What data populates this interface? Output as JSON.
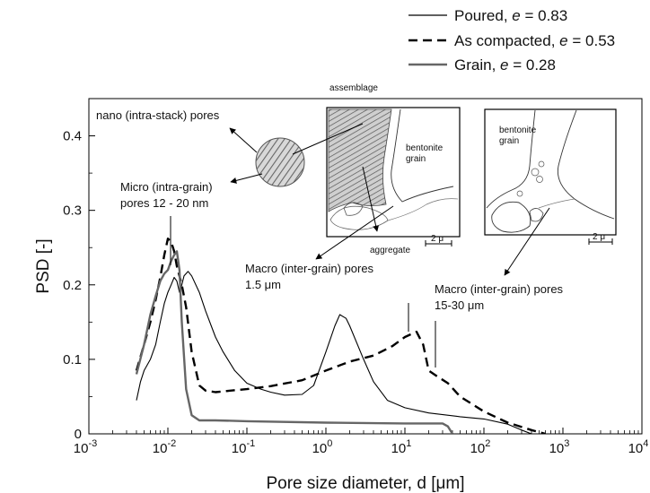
{
  "chart_data": {
    "type": "line",
    "xscale": "log",
    "xlim": [
      0.001,
      10000
    ],
    "ylim": [
      0,
      0.45
    ],
    "xlabel": "Pore size diameter, d [μm]",
    "ylabel": "PSD [-]",
    "x_ticks": [
      {
        "base": "10",
        "exp": "-3",
        "value": 0.001
      },
      {
        "base": "10",
        "exp": "-2",
        "value": 0.01
      },
      {
        "base": "10",
        "exp": "-1",
        "value": 0.1
      },
      {
        "base": "10",
        "exp": "0",
        "value": 1
      },
      {
        "base": "10",
        "exp": "1",
        "value": 10
      },
      {
        "base": "10",
        "exp": "2",
        "value": 100
      },
      {
        "base": "10",
        "exp": "3",
        "value": 1000
      },
      {
        "base": "10",
        "exp": "4",
        "value": 10000
      }
    ],
    "y_ticks": [
      "0",
      "0.1",
      "0.2",
      "0.3",
      "0.4"
    ],
    "legend_position": "top-right",
    "series": [
      {
        "name": "Poured",
        "legend_prefix": "Poured, ",
        "legend_var": "e",
        "legend_value": " = 0.83",
        "style": "solid-thin",
        "color": "#000000",
        "points": [
          [
            0.004,
            0.045
          ],
          [
            0.0045,
            0.07
          ],
          [
            0.005,
            0.085
          ],
          [
            0.006,
            0.1
          ],
          [
            0.007,
            0.12
          ],
          [
            0.008,
            0.15
          ],
          [
            0.009,
            0.175
          ],
          [
            0.01,
            0.19
          ],
          [
            0.011,
            0.2
          ],
          [
            0.012,
            0.21
          ],
          [
            0.013,
            0.205
          ],
          [
            0.014,
            0.19
          ],
          [
            0.015,
            0.2
          ],
          [
            0.016,
            0.212
          ],
          [
            0.018,
            0.218
          ],
          [
            0.02,
            0.212
          ],
          [
            0.025,
            0.19
          ],
          [
            0.03,
            0.165
          ],
          [
            0.04,
            0.13
          ],
          [
            0.05,
            0.11
          ],
          [
            0.07,
            0.085
          ],
          [
            0.1,
            0.068
          ],
          [
            0.15,
            0.06
          ],
          [
            0.2,
            0.056
          ],
          [
            0.3,
            0.052
          ],
          [
            0.5,
            0.053
          ],
          [
            0.7,
            0.065
          ],
          [
            1.0,
            0.11
          ],
          [
            1.3,
            0.145
          ],
          [
            1.5,
            0.16
          ],
          [
            1.8,
            0.155
          ],
          [
            2.0,
            0.145
          ],
          [
            3.0,
            0.1
          ],
          [
            4.0,
            0.07
          ],
          [
            6.0,
            0.045
          ],
          [
            10,
            0.035
          ],
          [
            20,
            0.028
          ],
          [
            50,
            0.023
          ],
          [
            100,
            0.02
          ],
          [
            200,
            0.013
          ],
          [
            300,
            0.005
          ],
          [
            400,
            0.0
          ]
        ]
      },
      {
        "name": "As compacted",
        "legend_prefix": "As compacted, ",
        "legend_var": "e",
        "legend_value": " = 0.53",
        "style": "dashed",
        "color": "#000000",
        "points": [
          [
            0.004,
            0.085
          ],
          [
            0.005,
            0.12
          ],
          [
            0.006,
            0.15
          ],
          [
            0.007,
            0.18
          ],
          [
            0.008,
            0.21
          ],
          [
            0.009,
            0.24
          ],
          [
            0.01,
            0.262
          ],
          [
            0.011,
            0.258
          ],
          [
            0.012,
            0.245
          ],
          [
            0.013,
            0.225
          ],
          [
            0.015,
            0.2
          ],
          [
            0.017,
            0.17
          ],
          [
            0.02,
            0.11
          ],
          [
            0.025,
            0.065
          ],
          [
            0.03,
            0.058
          ],
          [
            0.04,
            0.056
          ],
          [
            0.05,
            0.057
          ],
          [
            0.1,
            0.06
          ],
          [
            0.2,
            0.064
          ],
          [
            0.5,
            0.072
          ],
          [
            1.0,
            0.085
          ],
          [
            2.0,
            0.097
          ],
          [
            4.0,
            0.105
          ],
          [
            7.0,
            0.118
          ],
          [
            10,
            0.13
          ],
          [
            14,
            0.137
          ],
          [
            17,
            0.12
          ],
          [
            20,
            0.085
          ],
          [
            25,
            0.078
          ],
          [
            35,
            0.068
          ],
          [
            50,
            0.05
          ],
          [
            100,
            0.03
          ],
          [
            200,
            0.015
          ],
          [
            400,
            0.005
          ],
          [
            600,
            0.0
          ]
        ]
      },
      {
        "name": "Grain",
        "legend_prefix": "Grain, ",
        "legend_var": "e",
        "legend_value": " = 0.28",
        "style": "solid-thick",
        "color": "#666666",
        "points": [
          [
            0.004,
            0.08
          ],
          [
            0.005,
            0.12
          ],
          [
            0.006,
            0.16
          ],
          [
            0.007,
            0.185
          ],
          [
            0.008,
            0.205
          ],
          [
            0.009,
            0.215
          ],
          [
            0.01,
            0.22
          ],
          [
            0.011,
            0.232
          ],
          [
            0.012,
            0.24
          ],
          [
            0.013,
            0.245
          ],
          [
            0.014,
            0.22
          ],
          [
            0.015,
            0.15
          ],
          [
            0.017,
            0.06
          ],
          [
            0.02,
            0.025
          ],
          [
            0.025,
            0.018
          ],
          [
            0.04,
            0.018
          ],
          [
            0.1,
            0.017
          ],
          [
            1.0,
            0.015
          ],
          [
            10,
            0.014
          ],
          [
            30,
            0.014
          ],
          [
            35,
            0.01
          ],
          [
            40,
            0.0
          ]
        ]
      }
    ],
    "annotations": {
      "nano": "nano (intra-stack) pores",
      "micro_1": "Micro (intra-grain)",
      "micro_2": "pores 12 - 20 nm",
      "macro_a_1": "Macro (inter-grain) pores",
      "macro_a_2": "1.5 μm",
      "macro_b_1": "Macro (inter-grain) pores",
      "macro_b_2": "15-30 μm",
      "assemblage": "assemblage",
      "aggregate": "aggregate",
      "bentonite_1": "bentonite",
      "bentonite_2": "grain",
      "bentonite_b_1": "bentonite",
      "bentonite_b_2": "grain",
      "scale_1": "2 μ",
      "scale_2": "2 μ"
    },
    "grid": false
  }
}
